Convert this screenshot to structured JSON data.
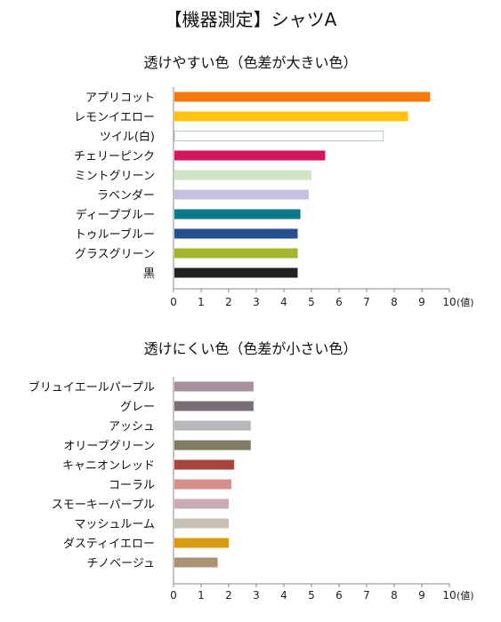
{
  "title": "【機器測定】シャツA",
  "chart_data": [
    {
      "type": "bar",
      "orientation": "horizontal",
      "title": "透けやすい色（色差が大きい色）",
      "unit_label": "(値)",
      "xlim": [
        0,
        10
      ],
      "ticks": [
        0,
        1,
        2,
        3,
        4,
        5,
        6,
        7,
        8,
        9,
        10
      ],
      "categories": [
        "アプリコット",
        "レモンイエロー",
        "ツイル(白)",
        "チェリーピンク",
        "ミントグリーン",
        "ラベンダー",
        "ディープブルー",
        "トゥルーブルー",
        "グラスグリーン",
        "黒"
      ],
      "values": [
        9.3,
        8.5,
        7.6,
        5.5,
        5.0,
        4.9,
        4.6,
        4.5,
        4.5,
        4.5
      ],
      "colors": [
        "#f47a0e",
        "#ffc20e",
        "#ffffff",
        "#d4175e",
        "#d1e3c5",
        "#c3c0e0",
        "#0d7a8a",
        "#264f8f",
        "#a3b52c",
        "#222222"
      ]
    },
    {
      "type": "bar",
      "orientation": "horizontal",
      "title": "透けにくい色（色差が小さい色）",
      "unit_label": "(値)",
      "xlim": [
        0,
        10
      ],
      "ticks": [
        0,
        1,
        2,
        3,
        4,
        5,
        6,
        7,
        8,
        9,
        10
      ],
      "categories": [
        "ブリュイエールパープル",
        "グレー",
        "アッシュ",
        "オリーブグリーン",
        "キャニオンレッド",
        "コーラル",
        "スモーキーパープル",
        "マッシュルーム",
        "ダスティイエロー",
        "チノベージュ"
      ],
      "values": [
        2.9,
        2.9,
        2.8,
        2.8,
        2.2,
        2.1,
        2.0,
        2.0,
        2.0,
        1.6
      ],
      "colors": [
        "#a88f9e",
        "#7a6e76",
        "#b9b7bc",
        "#7f7c62",
        "#a8463e",
        "#d68f89",
        "#c9aab5",
        "#c8c0b2",
        "#d89a0e",
        "#ab9175"
      ]
    }
  ]
}
